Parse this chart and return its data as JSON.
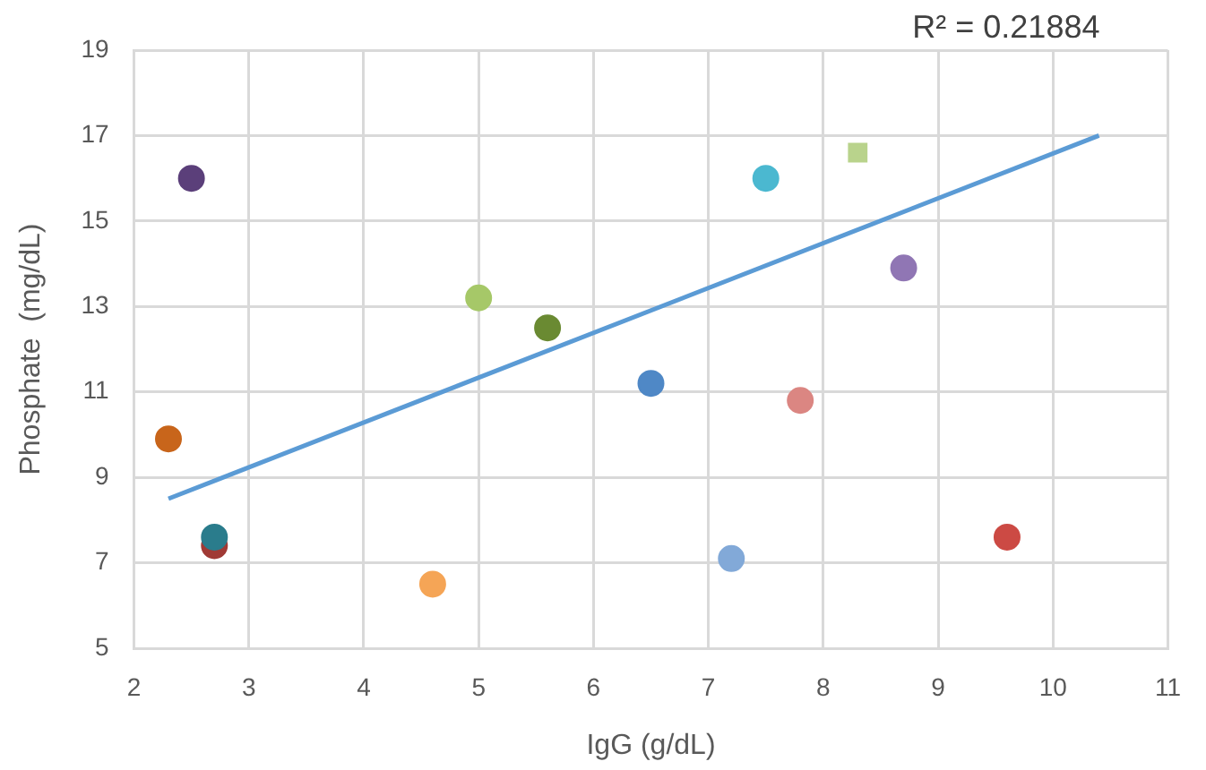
{
  "chart_data": {
    "type": "scatter",
    "xlabel": "IgG (g/dL)",
    "ylabel": "Phosphate  (mg/dL)",
    "annotations": [
      "R² = 0.21884"
    ],
    "xlim": [
      2,
      11
    ],
    "xticks": [
      2,
      3,
      4,
      5,
      6,
      7,
      8,
      9,
      10,
      11
    ],
    "ylim": [
      5,
      19
    ],
    "yticks": [
      5,
      7,
      9,
      11,
      13,
      15,
      17,
      19
    ],
    "grid": true,
    "series": [
      {
        "marker": "circle",
        "x": [
          2.5,
          2.3,
          2.7,
          2.7,
          4.6,
          5.0,
          5.6,
          6.5,
          7.5,
          8.7,
          7.8,
          7.2,
          9.6
        ],
        "values": [
          16.0,
          9.9,
          7.4,
          7.6,
          6.5,
          13.2,
          12.5,
          11.2,
          16.0,
          13.9,
          10.8,
          7.1,
          7.6
        ],
        "colors": [
          "#5b3f7a",
          "#c8651b",
          "#a03a35",
          "#2a7c8c",
          "#f5a556",
          "#a6c868",
          "#6a8a32",
          "#4f88c6",
          "#4bb8d0",
          "#9076b4",
          "#db8682",
          "#82a9d8",
          "#cc4a44"
        ]
      },
      {
        "marker": "square",
        "x": [
          8.3
        ],
        "values": [
          16.6
        ],
        "color": "#b9d38c"
      },
      {
        "type": "line",
        "marker": "none",
        "x": [
          2.3,
          10.4
        ],
        "values": [
          8.5,
          17.0
        ],
        "color": "#5b9bd5"
      }
    ]
  }
}
